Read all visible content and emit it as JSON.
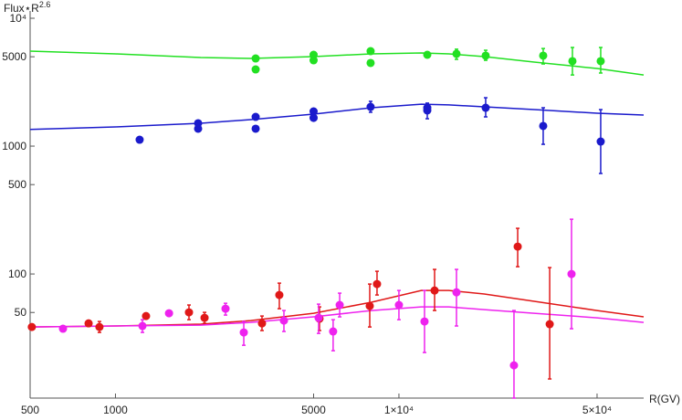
{
  "chart_data": {
    "type": "scatter",
    "ylabel": {
      "text": "Flux⋆R",
      "superscript": "2.6"
    },
    "xlabel": "R(GV)",
    "xscale": "log",
    "yscale": "log",
    "xlim": [
      500,
      73000
    ],
    "ylim": [
      10.7,
      10000
    ],
    "xticks": [
      500,
      1000,
      5000,
      {
        "value": 10000,
        "label": "1×10⁴"
      },
      {
        "value": 50000,
        "label": "5×10⁴"
      }
    ],
    "yticks": [
      50,
      100,
      500,
      1000,
      5000,
      {
        "value": 10000,
        "label": "10⁴"
      }
    ],
    "series": [
      {
        "kind": "line",
        "color": "#22e022",
        "x": [
          500,
          1000,
          2000,
          3000,
          5000,
          8000,
          12000,
          15000,
          20000,
          30000,
          50000,
          73000
        ],
        "values": [
          5530,
          5270,
          4930,
          4850,
          5010,
          5270,
          5350,
          5270,
          5010,
          4540,
          4050,
          3600
        ]
      },
      {
        "kind": "line",
        "color": "#1a1acc",
        "x": [
          500,
          1000,
          2000,
          3000,
          5000,
          8000,
          12000,
          15000,
          20000,
          30000,
          50000,
          73000
        ],
        "values": [
          1349,
          1413,
          1510,
          1612,
          1778,
          1995,
          2130,
          2100,
          2028,
          1930,
          1808,
          1750
        ]
      },
      {
        "kind": "line",
        "color": "#e01818",
        "x": [
          500,
          1000,
          2000,
          3000,
          5000,
          8000,
          12000,
          15000,
          20000,
          30000,
          50000,
          73000
        ],
        "values": [
          38.5,
          39.2,
          40.5,
          43.2,
          49.3,
          60.1,
          74.3,
          74.3,
          69.7,
          61.1,
          51.8,
          46.2
        ]
      },
      {
        "kind": "line",
        "color": "#ee22ee",
        "x": [
          500,
          1000,
          2000,
          3000,
          5000,
          8000,
          12000,
          15000,
          20000,
          30000,
          50000,
          73000
        ],
        "values": [
          38.5,
          39.2,
          39.8,
          41.8,
          46.2,
          51.8,
          55.3,
          55.3,
          52.6,
          49.3,
          45.4,
          41.8
        ]
      },
      {
        "kind": "points",
        "color": "#22e022",
        "x": [
          3123,
          3123,
          5000,
          5000,
          7945,
          7945,
          12590,
          15960,
          20230,
          32280,
          40930,
          51500
        ],
        "values": [
          4850,
          3981,
          5180,
          4690,
          5530,
          4470,
          5180,
          5270,
          5100,
          5100,
          4620,
          4620
        ],
        "lower": [
          null,
          null,
          null,
          null,
          5270,
          null,
          null,
          4770,
          4690,
          4390,
          3600,
          3730
        ],
        "upper": [
          null,
          null,
          null,
          null,
          5800,
          null,
          null,
          5730,
          5620,
          5800,
          5910,
          5910
        ]
      },
      {
        "kind": "points",
        "color": "#1a1acc",
        "x": [
          1217,
          1957,
          1957,
          3123,
          3123,
          5000,
          5000,
          7945,
          12590,
          12590,
          20230,
          32280,
          51500
        ],
        "values": [
          1122,
          1510,
          1368,
          1693,
          1368,
          1868,
          1664,
          2028,
          1995,
          1900,
          1995,
          1437,
          1086
        ],
        "lower": [
          null,
          null,
          null,
          null,
          null,
          null,
          null,
          1840,
          1637,
          null,
          1693,
          1033,
          611
        ],
        "upper": [
          null,
          null,
          null,
          null,
          null,
          null,
          null,
          2240,
          2170,
          null,
          2390,
          1995,
          1930
        ]
      },
      {
        "kind": "points",
        "color": "#e01818",
        "x": [
          507,
          804,
          878,
          1282,
          1817,
          2062,
          3288,
          3785,
          5245,
          7890,
          8370,
          13360,
          26240,
          34030
        ],
        "values": [
          38.5,
          41.1,
          38.5,
          46.9,
          50.1,
          45.4,
          41.1,
          68.5,
          44.7,
          56.2,
          83.4,
          74.3,
          163.8,
          40.5
        ],
        "lower": [
          null,
          null,
          34.9,
          null,
          43.9,
          41.1,
          36.1,
          53.5,
          36.1,
          38.5,
          68.5,
          51.8,
          114,
          15.1
        ],
        "upper": [
          null,
          null,
          42.5,
          null,
          57.2,
          50.1,
          46.9,
          84.8,
          55.3,
          83.4,
          105,
          108.6,
          227.6,
          112.2
        ]
      },
      {
        "kind": "points",
        "color": "#ee22ee",
        "x": [
          653,
          1245,
          1545,
          2445,
          2836,
          3929,
          5208,
          5860,
          6180,
          10000,
          12310,
          15960,
          25460,
          40630
        ],
        "values": [
          37.3,
          39.2,
          49.3,
          53.5,
          34.9,
          43.2,
          45.4,
          35.5,
          57.2,
          57.2,
          42.5,
          71.9,
          19.3,
          100
        ],
        "lower": [
          null,
          34.9,
          null,
          47.7,
          27.7,
          35.5,
          34.3,
          25.1,
          46.2,
          43.9,
          24.3,
          39.2,
          10.7,
          37.3
        ],
        "upper": [
          null,
          43.9,
          null,
          59,
          42.5,
          51.8,
          58.1,
          43.9,
          70.8,
          74.3,
          74.3,
          108.6,
          51.8,
          268
        ]
      }
    ]
  }
}
